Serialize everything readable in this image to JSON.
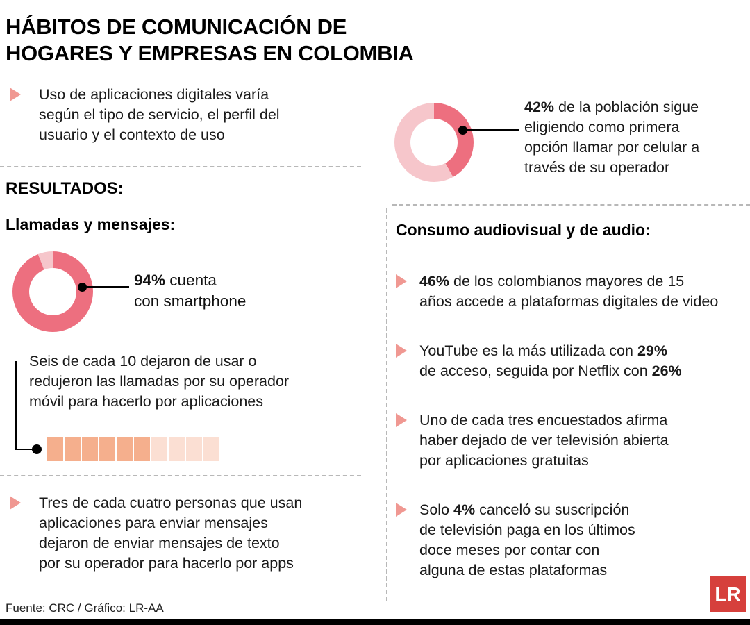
{
  "title": "HÁBITOS DE COMUNICACIÓN DE\nHOGARES Y EMPRESAS EN COLOMBIA",
  "intro_text": "Uso de aplicaciones digitales varía\nsegún el tipo de servicio, el perfil del\nusuario y el contexto de uso",
  "results_label": "RESULTADOS:",
  "left": {
    "section_title": "Llamadas y mensajes:",
    "smartphone_callout": [
      {
        "t": "94%",
        "b": true
      },
      {
        "t": " cuenta\ncon smartphone",
        "b": false
      }
    ],
    "six_text": "Seis de cada 10 dejaron de usar o\nredujeron las llamadas por su operador\nmóvil para hacerlo por aplicaciones",
    "messages_bullet": "Tres de cada cuatro personas que usan\naplicaciones para enviar mensajes\ndejaron de enviar mensajes de texto\npor su operador para hacerlo por apps"
  },
  "right": {
    "calls_callout": [
      {
        "t": "42%",
        "b": true
      },
      {
        "t": " de la población sigue\neligiendo como primera\nopción llamar por celular a\ntravés de su operador",
        "b": false
      }
    ],
    "section_title": "Consumo audiovisual y de audio:",
    "bullets": [
      [
        {
          "t": "46%",
          "b": true
        },
        {
          "t": " de los colombianos mayores de 15\naños accede a plataformas digitales de video",
          "b": false
        }
      ],
      [
        {
          "t": "YouTube es la más utilizada con ",
          "b": false
        },
        {
          "t": "29%",
          "b": true
        },
        {
          "t": "\nde acceso, seguida por Netflix con ",
          "b": false
        },
        {
          "t": "26%",
          "b": true
        }
      ],
      [
        {
          "t": "Uno de cada tres encuestados afirma\nhaber dejado de ver televisión abierta\npor aplicaciones gratuitas",
          "b": false
        }
      ],
      [
        {
          "t": "Solo ",
          "b": false
        },
        {
          "t": "4%",
          "b": true
        },
        {
          "t": " canceló su suscripción\nde televisión paga en los últimos\ndoce meses por contar con\nalguna de estas plataformas",
          "b": false
        }
      ]
    ]
  },
  "footer": {
    "source": "Fuente: CRC / Gráfico: LR-AA",
    "logo_text": "LR"
  },
  "colors": {
    "donut_dark": "#ED6F7F",
    "donut_light": "#F6C6CB",
    "square_filled": "#F5AF8D",
    "square_empty": "#FBDFD3",
    "bullet_triangle": "#F09892",
    "logo_red": "#D6403C"
  },
  "chart_data": [
    {
      "type": "pie",
      "subtype": "donut",
      "title": "94% cuenta con smartphone",
      "labels": [
        "Cuenta con smartphone",
        "No cuenta"
      ],
      "values": [
        94,
        6
      ],
      "unit": "%"
    },
    {
      "type": "pie",
      "subtype": "donut",
      "title": "42% de la población sigue eligiendo como primera opción llamar por celular a través de su operador",
      "labels": [
        "Llamar por celular como primera opción",
        "Otros"
      ],
      "values": [
        42,
        58
      ],
      "unit": "%"
    },
    {
      "type": "bar",
      "subtype": "unit_squares",
      "title": "Seis de cada 10 dejaron de usar o redujeron las llamadas por su operador móvil para hacerlo por aplicaciones",
      "filled": 6,
      "total": 10
    }
  ]
}
